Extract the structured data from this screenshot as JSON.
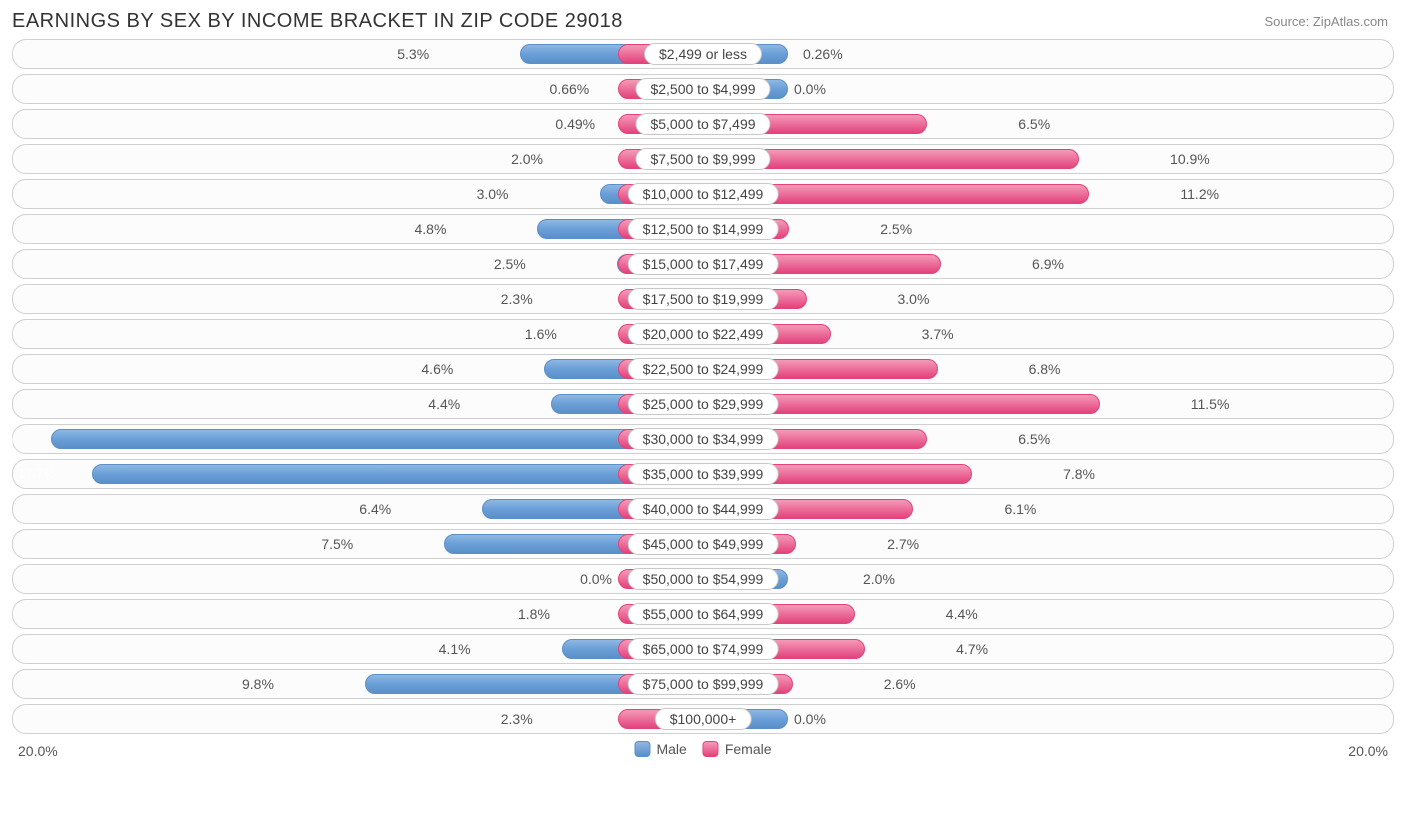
{
  "title": "EARNINGS BY SEX BY INCOME BRACKET IN ZIP CODE 29018",
  "source": "Source: ZipAtlas.com",
  "chart": {
    "type": "diverging-bar",
    "max_pct": 20.0,
    "axis_left_label": "20.0%",
    "axis_right_label": "20.0%",
    "male_color": "#6a9fd8",
    "female_color": "#ec6e9a",
    "track_border_color": "#d0d0d0",
    "background_color": "#ffffff",
    "label_fontsize": 14,
    "legend": {
      "male": "Male",
      "female": "Female"
    },
    "rows": [
      {
        "category": "$2,499 or less",
        "male": 5.3,
        "female": 0.26,
        "male_label": "5.3%",
        "female_label": "0.26%"
      },
      {
        "category": "$2,500 to $4,999",
        "male": 0.66,
        "female": 0.0,
        "male_label": "0.66%",
        "female_label": "0.0%"
      },
      {
        "category": "$5,000 to $7,499",
        "male": 0.49,
        "female": 6.5,
        "male_label": "0.49%",
        "female_label": "6.5%"
      },
      {
        "category": "$7,500 to $9,999",
        "male": 2.0,
        "female": 10.9,
        "male_label": "2.0%",
        "female_label": "10.9%"
      },
      {
        "category": "$10,000 to $12,499",
        "male": 3.0,
        "female": 11.2,
        "male_label": "3.0%",
        "female_label": "11.2%"
      },
      {
        "category": "$12,500 to $14,999",
        "male": 4.8,
        "female": 2.5,
        "male_label": "4.8%",
        "female_label": "2.5%"
      },
      {
        "category": "$15,000 to $17,499",
        "male": 2.5,
        "female": 6.9,
        "male_label": "2.5%",
        "female_label": "6.9%"
      },
      {
        "category": "$17,500 to $19,999",
        "male": 2.3,
        "female": 3.0,
        "male_label": "2.3%",
        "female_label": "3.0%"
      },
      {
        "category": "$20,000 to $22,499",
        "male": 1.6,
        "female": 3.7,
        "male_label": "1.6%",
        "female_label": "3.7%"
      },
      {
        "category": "$22,500 to $24,999",
        "male": 4.6,
        "female": 6.8,
        "male_label": "4.6%",
        "female_label": "6.8%"
      },
      {
        "category": "$25,000 to $29,999",
        "male": 4.4,
        "female": 11.5,
        "male_label": "4.4%",
        "female_label": "11.5%"
      },
      {
        "category": "$30,000 to $34,999",
        "male": 18.9,
        "female": 6.5,
        "male_label": "18.9%",
        "female_label": "6.5%"
      },
      {
        "category": "$35,000 to $39,999",
        "male": 17.7,
        "female": 7.8,
        "male_label": "17.7%",
        "female_label": "7.8%"
      },
      {
        "category": "$40,000 to $44,999",
        "male": 6.4,
        "female": 6.1,
        "male_label": "6.4%",
        "female_label": "6.1%"
      },
      {
        "category": "$45,000 to $49,999",
        "male": 7.5,
        "female": 2.7,
        "male_label": "7.5%",
        "female_label": "2.7%"
      },
      {
        "category": "$50,000 to $54,999",
        "male": 0.0,
        "female": 2.0,
        "male_label": "0.0%",
        "female_label": "2.0%"
      },
      {
        "category": "$55,000 to $64,999",
        "male": 1.8,
        "female": 4.4,
        "male_label": "1.8%",
        "female_label": "4.4%"
      },
      {
        "category": "$65,000 to $74,999",
        "male": 4.1,
        "female": 4.7,
        "male_label": "4.1%",
        "female_label": "4.7%"
      },
      {
        "category": "$75,000 to $99,999",
        "male": 9.8,
        "female": 2.6,
        "male_label": "9.8%",
        "female_label": "2.6%"
      },
      {
        "category": "$100,000+",
        "male": 2.3,
        "female": 0.0,
        "male_label": "2.3%",
        "female_label": "0.0%"
      }
    ]
  }
}
